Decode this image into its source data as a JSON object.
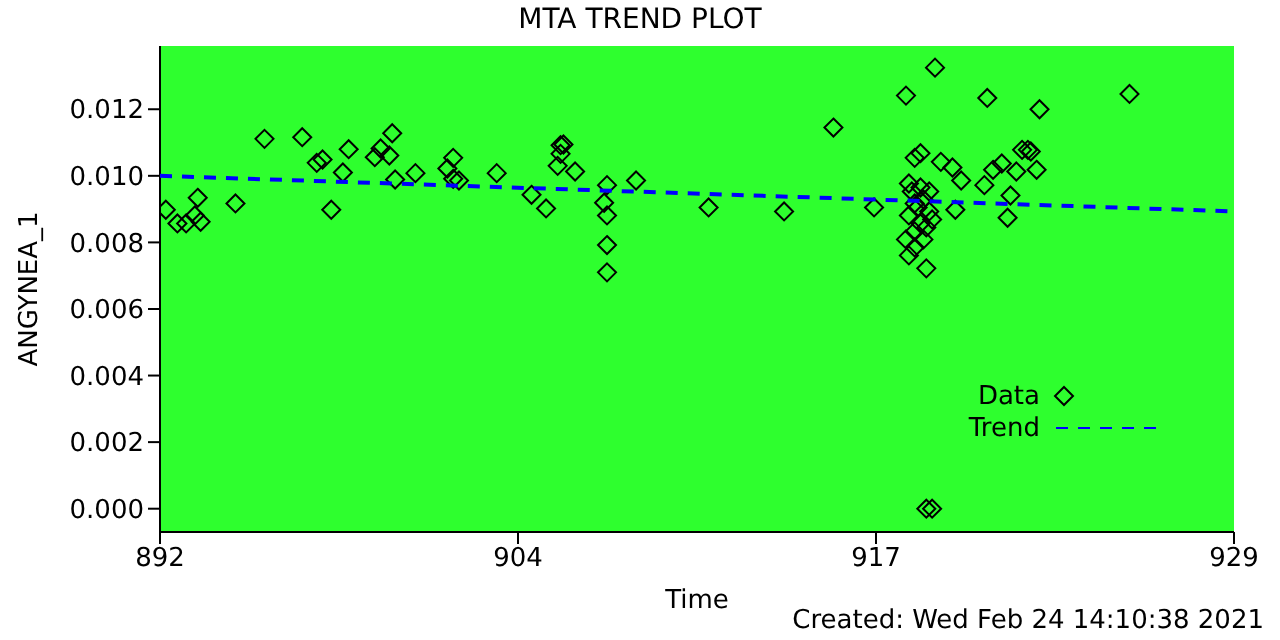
{
  "chart_data": {
    "type": "scatter",
    "title": "MTA TREND PLOT",
    "xlabel": "Time",
    "ylabel": "ANGYNEA_1",
    "annotations": [
      "Created: Wed Feb 24 14:10:38 2021"
    ],
    "xlim": [
      892,
      929
    ],
    "xticks": [
      892,
      {
        "value": 904.333,
        "label": "904"
      },
      {
        "value": 916.667,
        "label": "917"
      },
      929
    ],
    "ylim": [
      -0.0007,
      0.0139
    ],
    "yticks": [
      {
        "value": 0,
        "label": "0.000"
      },
      {
        "value": 0.002,
        "label": "0.002"
      },
      {
        "value": 0.004,
        "label": "0.004"
      },
      {
        "value": 0.006,
        "label": "0.006"
      },
      {
        "value": 0.008,
        "label": "0.008"
      },
      {
        "value": 0.01,
        "label": "0.010"
      },
      {
        "value": 0.012,
        "label": "0.012"
      }
    ],
    "grid": false,
    "legend": "bottom right",
    "series": [
      {
        "name": "Data",
        "type": "scatter",
        "color": "#000000",
        "marker": "diamond",
        "x": [
          892.2,
          892.6,
          892.9,
          893.2,
          893.3,
          893.4,
          894.6,
          895.6,
          896.9,
          897.4,
          897.6,
          897.9,
          898.3,
          898.5,
          899.4,
          899.6,
          899.9,
          900.0,
          900.1,
          900.8,
          901.9,
          902.1,
          902.1,
          902.3,
          903.6,
          904.8,
          905.3,
          905.7,
          905.8,
          905.8,
          905.9,
          906.3,
          907.4,
          907.3,
          907.4,
          907.4,
          907.4,
          908.4,
          910.9,
          913.5,
          915.2,
          916.6,
          917.7,
          918.0,
          918.2,
          917.7,
          917.8,
          917.8,
          917.9,
          918.0,
          918.0,
          918.1,
          918.2,
          918.2,
          918.3,
          918.3,
          918.4,
          918.5,
          918.5,
          918.6,
          917.8,
          918.0,
          918.7,
          918.4,
          918.4,
          918.6,
          918.9,
          919.3,
          919.4,
          919.6,
          920.5,
          920.4,
          920.7,
          921.0,
          921.2,
          921.3,
          921.5,
          921.7,
          921.9,
          922.0,
          922.2,
          922.3,
          925.4
        ],
        "values": [
          0.00898,
          0.00857,
          0.00857,
          0.00881,
          0.00934,
          0.00862,
          0.00917,
          0.01111,
          0.01116,
          0.01039,
          0.01049,
          0.00898,
          0.0101,
          0.0108,
          0.01056,
          0.01082,
          0.01061,
          0.01128,
          0.00989,
          0.01008,
          0.01022,
          0.01054,
          0.00991,
          0.00986,
          0.01008,
          0.00943,
          0.00902,
          0.0103,
          0.01066,
          0.01092,
          0.01094,
          0.01013,
          0.00972,
          0.00919,
          0.00881,
          0.00792,
          0.0071,
          0.00986,
          0.00905,
          0.00893,
          0.01145,
          0.00905,
          0.01241,
          0.01054,
          0.01068,
          0.00809,
          0.00761,
          0.00881,
          0.00953,
          0.00833,
          0.00785,
          0.00905,
          0.00965,
          0.00857,
          0.00929,
          0.00809,
          0.00845,
          0.00893,
          0.00953,
          0.00869,
          0.00977,
          0.00917,
          0.01325,
          0.00722,
          0.0,
          0.0,
          0.01042,
          0.01025,
          0.00898,
          0.00986,
          0.01234,
          0.00972,
          0.01018,
          0.01037,
          0.00874,
          0.00941,
          0.01013,
          0.01078,
          0.01078,
          0.01073,
          0.01018,
          0.012,
          0.01246
        ]
      },
      {
        "name": "Trend",
        "type": "line",
        "color": "#0000ff",
        "marker": "none",
        "line_style": "dashed",
        "x": [
          892,
          929
        ],
        "values": [
          0.01,
          0.00893
        ]
      }
    ]
  }
}
